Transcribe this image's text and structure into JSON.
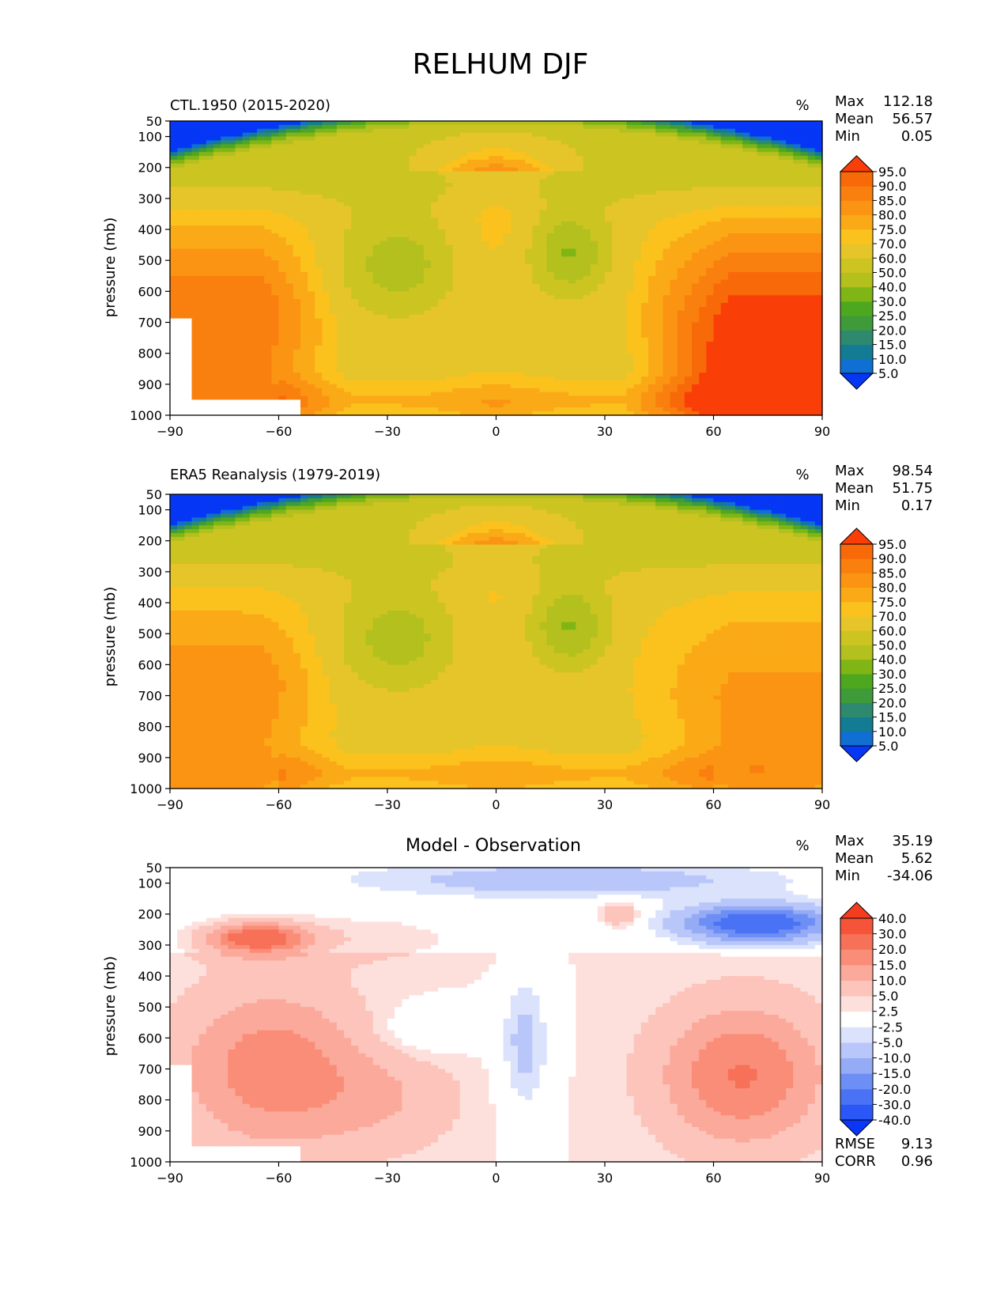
{
  "figure_title": "RELHUM DJF",
  "stat_labels": {
    "max": "Max",
    "mean": "Mean",
    "min": "Min",
    "rmse": "RMSE",
    "corr": "CORR"
  },
  "colors": {
    "levels_rh": [
      "#0637f5",
      "#0f6fd3",
      "#137b93",
      "#2e8a6e",
      "#3f9b39",
      "#4ea81f",
      "#80b516",
      "#b3c01e",
      "#ccc421",
      "#e6c52a",
      "#fbc21d",
      "#fbaa17",
      "#fb9413",
      "#f9800e",
      "#f86a09",
      "#fa3e08"
    ],
    "levels_diff": [
      "#0a36f7",
      "#2a57f5",
      "#4a72f4",
      "#6d8ef4",
      "#95abf6",
      "#b8c6f9",
      "#dbe2fc",
      "#ffffff",
      "#ffffff",
      "#fde0dc",
      "#fcc4bb",
      "#fba99a",
      "#fa8d78",
      "#f77058",
      "#f65438",
      "#f43c1e"
    ]
  },
  "chart_data": [
    {
      "type": "contour",
      "panel_title": "CTL.1950 (2015-2020)",
      "units": "%",
      "stats": {
        "max": "112.18",
        "mean": "56.57",
        "min": "0.05"
      },
      "xlabel": "",
      "ylabel": "pressure (mb)",
      "xlim": [
        -90,
        90
      ],
      "ylim": [
        1000,
        50
      ],
      "xticks": [
        "−90",
        "−60",
        "−30",
        "0",
        "30",
        "60",
        "90"
      ],
      "yticks": [
        "50",
        "100",
        "200",
        "300",
        "400",
        "500",
        "600",
        "700",
        "800",
        "900",
        "1000"
      ],
      "colorbar_levels": [
        "95.0",
        "90.0",
        "85.0",
        "80.0",
        "75.0",
        "70.0",
        "60.0",
        "50.0",
        "40.0",
        "30.0",
        "25.0",
        "20.0",
        "15.0",
        "10.0",
        "5.0"
      ],
      "field": {
        "kind": "rh",
        "topo_mask": true,
        "eq_dry_max": 72,
        "south_moist": 82,
        "north_moist": 93,
        "north_sfc_boost": 10
      }
    },
    {
      "type": "contour",
      "panel_title": "ERA5 Reanalysis (1979-2019)",
      "units": "%",
      "stats": {
        "max": "98.54",
        "mean": "51.75",
        "min": "0.17"
      },
      "xlabel": "",
      "ylabel": "pressure (mb)",
      "xlim": [
        -90,
        90
      ],
      "ylim": [
        1000,
        50
      ],
      "xticks": [
        "−90",
        "−60",
        "−30",
        "0",
        "30",
        "60",
        "90"
      ],
      "yticks": [
        "50",
        "100",
        "200",
        "300",
        "400",
        "500",
        "600",
        "700",
        "800",
        "900",
        "1000"
      ],
      "colorbar_levels": [
        "95.0",
        "90.0",
        "85.0",
        "80.0",
        "75.0",
        "70.0",
        "60.0",
        "50.0",
        "40.0",
        "30.0",
        "25.0",
        "20.0",
        "15.0",
        "10.0",
        "5.0"
      ],
      "field": {
        "kind": "rh",
        "topo_mask": false,
        "eq_dry_max": 70,
        "south_moist": 76,
        "north_moist": 74,
        "north_sfc_boost": 4
      }
    },
    {
      "type": "contour",
      "panel_title": "Model - Observation",
      "units": "%",
      "stats": {
        "max": "35.19",
        "mean": "5.62",
        "min": "-34.06"
      },
      "extra_stats": {
        "rmse": "9.13",
        "corr": "0.96"
      },
      "xlabel": "",
      "ylabel": "pressure (mb)",
      "xlim": [
        -90,
        90
      ],
      "ylim": [
        1000,
        50
      ],
      "xticks": [
        "−90",
        "−60",
        "−30",
        "0",
        "30",
        "60",
        "90"
      ],
      "yticks": [
        "50",
        "100",
        "200",
        "300",
        "400",
        "500",
        "600",
        "700",
        "800",
        "900",
        "1000"
      ],
      "colorbar_levels": [
        "40.0",
        "30.0",
        "20.0",
        "15.0",
        "10.0",
        "5.0",
        "2.5",
        "-2.5",
        "-5.0",
        "-10.0",
        "-15.0",
        "-20.0",
        "-30.0",
        "-40.0"
      ],
      "field": {
        "kind": "diff",
        "topo_mask": true
      }
    }
  ]
}
